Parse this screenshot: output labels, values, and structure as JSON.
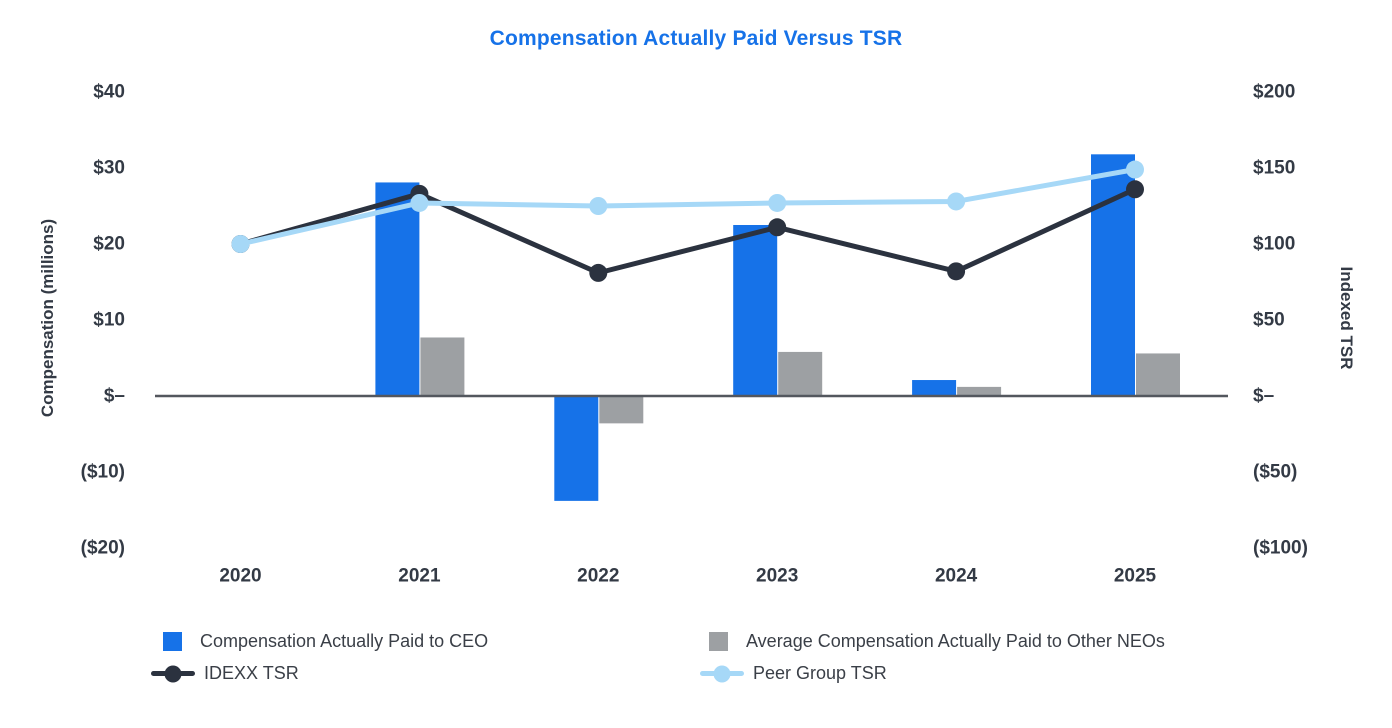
{
  "chart_data": {
    "type": "combo-bar-line",
    "title": "Compensation Actually Paid Versus TSR",
    "title_color": "#1672E8",
    "categories": [
      "2020",
      "2021",
      "2022",
      "2023",
      "2024",
      "2025"
    ],
    "left_axis": {
      "label": "Compensation (millions)",
      "ticks": [
        "$40",
        "$30",
        "$20",
        "$10",
        "$–",
        "($10)",
        "($20)"
      ],
      "tick_values": [
        40,
        30,
        20,
        10,
        0,
        -10,
        -20
      ],
      "range": [
        -20,
        40
      ]
    },
    "right_axis": {
      "label": "Indexed TSR",
      "ticks": [
        "$200",
        "$150",
        "$100",
        "$50",
        "$–",
        "($50)",
        "($100)"
      ],
      "tick_values": [
        200,
        150,
        100,
        50,
        0,
        -50,
        -100
      ],
      "range": [
        -100,
        200
      ]
    },
    "grid": "off",
    "legend_position": "bottom",
    "series": [
      {
        "name": "Compensation Actually Paid to CEO",
        "type": "bar",
        "axis": "left",
        "color": "#1672E8",
        "values": [
          null,
          28.1,
          -13.8,
          22.5,
          2.1,
          31.8
        ]
      },
      {
        "name": "Average Compensation Actually Paid to Other NEOs",
        "type": "bar",
        "axis": "left",
        "color": "#9DA0A3",
        "values": [
          null,
          7.7,
          -3.6,
          5.8,
          1.2,
          5.6
        ]
      },
      {
        "name": "IDEXX TSR",
        "type": "line",
        "axis": "right",
        "color": "#2B323F",
        "values": [
          100,
          133,
          81,
          111,
          82,
          136
        ]
      },
      {
        "name": "Peer Group TSR",
        "type": "line",
        "axis": "right",
        "color": "#A6D8F7",
        "values": [
          100,
          127,
          125,
          127,
          128,
          149
        ]
      }
    ]
  }
}
